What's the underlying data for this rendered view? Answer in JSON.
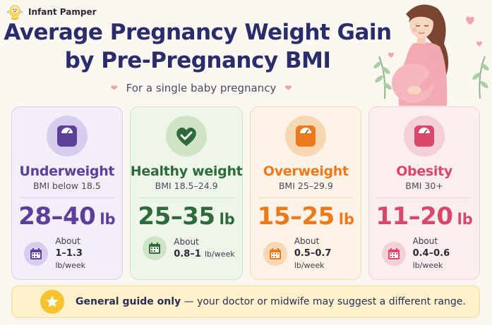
{
  "brand": {
    "name": "Infant Pamper"
  },
  "title": {
    "line1": "Average Pregnancy Weight Gain",
    "line2": "by Pre-Pregnancy BMI"
  },
  "subtitle": "For a single baby pregnancy",
  "cards": [
    {
      "title": "Underweight",
      "bmi": "BMI below 18.5",
      "range": "28–40",
      "unit": "lb",
      "about": "About",
      "rate": "1–1.3",
      "rate_unit": "lb/week",
      "color": "#5b3f9a",
      "bg": "#f3eefa",
      "border": "#d9cdef",
      "icon": "scale-icon"
    },
    {
      "title": "Healthy weight",
      "bmi": "BMI 18.5–24.9",
      "range": "25–35",
      "unit": "lb",
      "about": "About",
      "rate": "0.8–1",
      "rate_unit": "lb/week",
      "color": "#2f6b3a",
      "bg": "#eef6ea",
      "border": "#cfe3c6",
      "icon": "heart-check-icon"
    },
    {
      "title": "Overweight",
      "bmi": "BMI 25–29.9",
      "range": "15–25",
      "unit": "lb",
      "about": "About",
      "rate": "0.5–0.7",
      "rate_unit": "lb/week",
      "color": "#ec7a1c",
      "bg": "#fdf3e6",
      "border": "#f6d9b4",
      "icon": "scale-icon"
    },
    {
      "title": "Obesity",
      "bmi": "BMI 30+",
      "range": "11–20",
      "unit": "lb",
      "about": "About",
      "rate": "0.4–0.6",
      "rate_unit": "lb/week",
      "color": "#d9486a",
      "bg": "#fcedef",
      "border": "#f3cfd6",
      "icon": "scale-icon"
    }
  ],
  "footer": {
    "bold": "General guide only",
    "rest": " — your doctor or midwife may suggest a different range."
  }
}
